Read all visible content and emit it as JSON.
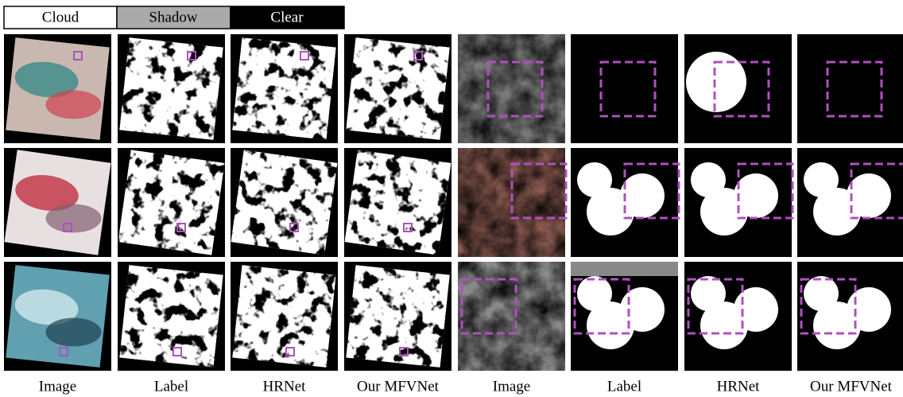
{
  "legend": [
    "Cloud",
    "Shadow",
    "Clear"
  ],
  "columns": [
    "Image",
    "Label",
    "HRNet",
    "Our MFVNet",
    "Image",
    "Label",
    "HRNet",
    "Our MFVNet"
  ]
}
